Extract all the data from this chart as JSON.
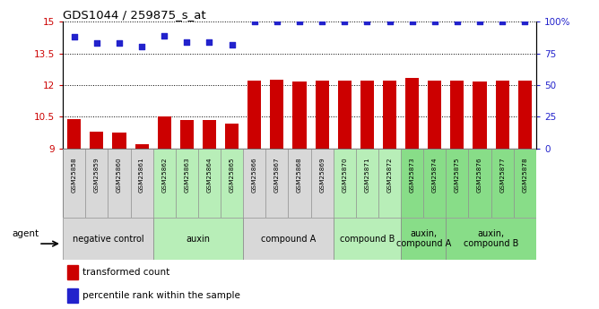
{
  "title": "GDS1044 / 259875_s_at",
  "samples": [
    "GSM25858",
    "GSM25859",
    "GSM25860",
    "GSM25861",
    "GSM25862",
    "GSM25863",
    "GSM25864",
    "GSM25865",
    "GSM25866",
    "GSM25867",
    "GSM25868",
    "GSM25869",
    "GSM25870",
    "GSM25871",
    "GSM25872",
    "GSM25873",
    "GSM25874",
    "GSM25875",
    "GSM25876",
    "GSM25877",
    "GSM25878"
  ],
  "bar_values": [
    10.4,
    9.8,
    9.75,
    9.2,
    10.5,
    10.35,
    10.35,
    10.15,
    12.2,
    12.25,
    12.15,
    12.2,
    12.2,
    12.2,
    12.2,
    12.35,
    12.2,
    12.2,
    12.15,
    12.2,
    12.2
  ],
  "percentile_values": [
    88,
    83,
    83,
    80,
    89,
    84,
    84,
    82,
    100,
    100,
    100,
    100,
    100,
    100,
    100,
    100,
    100,
    100,
    100,
    100,
    100
  ],
  "ylim_left": [
    9,
    15
  ],
  "ylim_right": [
    0,
    100
  ],
  "yticks_left": [
    9,
    10.5,
    12,
    13.5,
    15
  ],
  "ytick_labels_left": [
    "9",
    "10.5",
    "12",
    "13.5",
    "15"
  ],
  "yticks_right": [
    0,
    25,
    50,
    75,
    100
  ],
  "ytick_labels_right": [
    "0",
    "25",
    "50",
    "75",
    "100%"
  ],
  "bar_color": "#cc0000",
  "dot_color": "#2222cc",
  "groups": [
    {
      "label": "negative control",
      "start": 0,
      "end": 3,
      "color": "#d8d8d8"
    },
    {
      "label": "auxin",
      "start": 4,
      "end": 7,
      "color": "#b8eeb8"
    },
    {
      "label": "compound A",
      "start": 8,
      "end": 11,
      "color": "#d8d8d8"
    },
    {
      "label": "compound B",
      "start": 12,
      "end": 14,
      "color": "#b8eeb8"
    },
    {
      "label": "auxin,\ncompound A",
      "start": 15,
      "end": 16,
      "color": "#88dd88"
    },
    {
      "label": "auxin,\ncompound B",
      "start": 17,
      "end": 20,
      "color": "#88dd88"
    }
  ],
  "sample_bg_colors": [
    "#d8d8d8",
    "#d8d8d8",
    "#d8d8d8",
    "#d8d8d8",
    "#b8eeb8",
    "#b8eeb8",
    "#b8eeb8",
    "#b8eeb8",
    "#d8d8d8",
    "#d8d8d8",
    "#d8d8d8",
    "#d8d8d8",
    "#b8eeb8",
    "#b8eeb8",
    "#b8eeb8",
    "#88dd88",
    "#88dd88",
    "#88dd88",
    "#88dd88",
    "#88dd88",
    "#88dd88"
  ],
  "legend_items": [
    {
      "label": "transformed count",
      "color": "#cc0000"
    },
    {
      "label": "percentile rank within the sample",
      "color": "#2222cc"
    }
  ],
  "agent_label": "agent",
  "grid_color": "#000000"
}
